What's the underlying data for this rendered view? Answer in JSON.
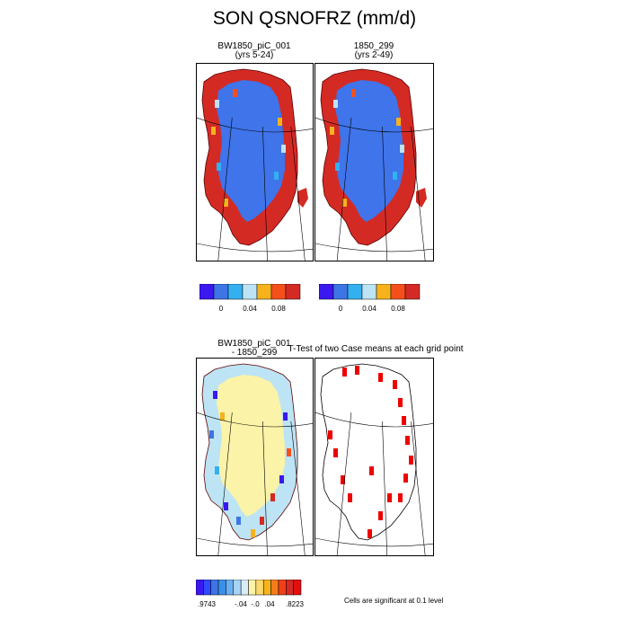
{
  "figure": {
    "title": "SON QSNOFRZ (mm/d)",
    "panels": [
      {
        "title": "BW1850_piC_001",
        "subtitle": "(yrs 5-24)"
      },
      {
        "title": "1850_299",
        "subtitle": "(yrs 2-49)"
      },
      {
        "title": "BW1850_piC_001",
        "subtitle": "- 1850_299"
      },
      {
        "title": "T-Test of two Case means at each grid point",
        "subtitle": ""
      }
    ],
    "note": "Cells are significant at 0.1 level"
  },
  "colors": {
    "ice_blue": "#3f74ea",
    "margin_red": "#d42a24",
    "diff_yellow": "#fbf3a8",
    "sig_red": "#ee0000"
  },
  "chart_data": [
    {
      "type": "heatmap",
      "name": "BW1850_piC_001 (yrs 5-24)",
      "colorbar": {
        "labels": [
          "0",
          "0.04",
          "0.08"
        ],
        "colors": [
          "#3b17f0",
          "#3d74e6",
          "#33b0f0",
          "#bde4f4",
          "#f7b21c",
          "#f5501c",
          "#d42a24"
        ]
      }
    },
    {
      "type": "heatmap",
      "name": "1850_299 (yrs 2-49)",
      "colorbar": {
        "labels": [
          "0",
          "0.04",
          "0.08"
        ],
        "colors": [
          "#3b17f0",
          "#3d74e6",
          "#33b0f0",
          "#bde4f4",
          "#f7b21c",
          "#f5501c",
          "#d42a24"
        ]
      }
    },
    {
      "type": "heatmap",
      "name": "BW1850_piC_001 - 1850_299",
      "colorbar": {
        "labels": [
          ".9743",
          "-.04",
          "-.0",
          ".04",
          ".8223"
        ],
        "colors": [
          "#3b17f0",
          "#2f4bff",
          "#3d74e6",
          "#3a8fe8",
          "#6aaff0",
          "#a8d3f5",
          "#d8ecf8",
          "#fbf3a8",
          "#fbd86b",
          "#f7b21c",
          "#f57c1c",
          "#f0401a",
          "#d42a24",
          "#e01010"
        ]
      }
    },
    {
      "type": "heatmap",
      "name": "T-Test of two Case means at each grid point",
      "legend": "Cells are significant at 0.1 level"
    }
  ]
}
